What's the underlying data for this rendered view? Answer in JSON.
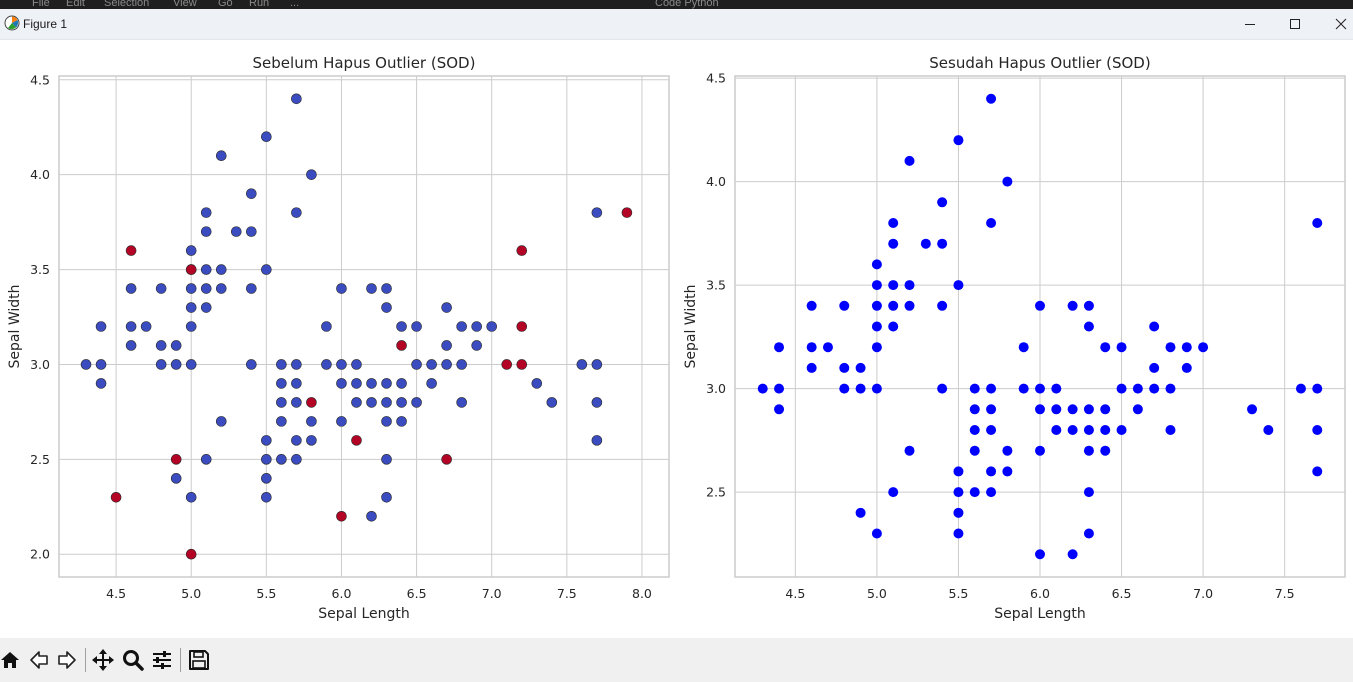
{
  "background_app": {
    "menu": [
      "File",
      "Edit",
      "Selection",
      "View",
      "Go",
      "Run",
      "..."
    ],
    "search_text": "Code Python"
  },
  "window": {
    "title": "Figure 1",
    "controls": {
      "minimize_icon": "minimize-icon",
      "maximize_icon": "maximize-icon",
      "close_icon": "close-icon"
    }
  },
  "colors": {
    "inlier": "#3b4cc0",
    "outlier": "#b40426",
    "after_points": "#0000ff",
    "grid": "#cccccc",
    "axes": "#cccccc"
  },
  "chart_data": [
    {
      "type": "scatter",
      "title": "Sebelum Hapus Outlier (SOD)",
      "xlabel": "Sepal Length",
      "ylabel": "Sepal Width",
      "xlim": [
        4.12,
        8.18
      ],
      "ylim": [
        1.88,
        4.52
      ],
      "xticks": [
        4.5,
        5.0,
        5.5,
        6.0,
        6.5,
        7.0,
        7.5,
        8.0
      ],
      "yticks": [
        2.0,
        2.5,
        3.0,
        3.5,
        4.0,
        4.5
      ],
      "tick_labels_x": [
        "4.5",
        "5.0",
        "5.5",
        "6.0",
        "6.5",
        "7.0",
        "7.5",
        "8.0"
      ],
      "tick_labels_y": [
        "2.0",
        "2.5",
        "3.0",
        "3.5",
        "4.0",
        "4.5"
      ],
      "grid": true,
      "series": [
        {
          "name": "inlier",
          "color": "#3b4cc0",
          "points": [
            [
              4.3,
              3.0
            ],
            [
              4.4,
              2.9
            ],
            [
              4.4,
              3.0
            ],
            [
              4.4,
              3.2
            ],
            [
              4.6,
              3.1
            ],
            [
              4.6,
              3.2
            ],
            [
              4.6,
              3.4
            ],
            [
              4.7,
              3.2
            ],
            [
              4.8,
              3.0
            ],
            [
              4.8,
              3.1
            ],
            [
              4.8,
              3.4
            ],
            [
              4.9,
              2.4
            ],
            [
              4.9,
              3.0
            ],
            [
              4.9,
              3.1
            ],
            [
              5.0,
              2.3
            ],
            [
              5.0,
              3.0
            ],
            [
              5.0,
              3.2
            ],
            [
              5.0,
              3.3
            ],
            [
              5.0,
              3.4
            ],
            [
              5.0,
              3.5
            ],
            [
              5.0,
              3.6
            ],
            [
              5.1,
              2.5
            ],
            [
              5.1,
              3.3
            ],
            [
              5.1,
              3.4
            ],
            [
              5.1,
              3.5
            ],
            [
              5.1,
              3.7
            ],
            [
              5.1,
              3.8
            ],
            [
              5.2,
              2.7
            ],
            [
              5.2,
              3.4
            ],
            [
              5.2,
              3.5
            ],
            [
              5.2,
              4.1
            ],
            [
              5.3,
              3.7
            ],
            [
              5.4,
              3.0
            ],
            [
              5.4,
              3.4
            ],
            [
              5.4,
              3.7
            ],
            [
              5.4,
              3.9
            ],
            [
              5.5,
              2.3
            ],
            [
              5.5,
              2.4
            ],
            [
              5.5,
              2.5
            ],
            [
              5.5,
              2.6
            ],
            [
              5.5,
              3.5
            ],
            [
              5.5,
              4.2
            ],
            [
              5.6,
              2.5
            ],
            [
              5.6,
              2.7
            ],
            [
              5.6,
              2.8
            ],
            [
              5.6,
              2.9
            ],
            [
              5.6,
              3.0
            ],
            [
              5.7,
              2.5
            ],
            [
              5.7,
              2.6
            ],
            [
              5.7,
              2.8
            ],
            [
              5.7,
              2.9
            ],
            [
              5.7,
              3.0
            ],
            [
              5.7,
              3.8
            ],
            [
              5.7,
              4.4
            ],
            [
              5.8,
              2.6
            ],
            [
              5.8,
              2.7
            ],
            [
              5.8,
              4.0
            ],
            [
              5.9,
              3.0
            ],
            [
              5.9,
              3.2
            ],
            [
              6.0,
              2.7
            ],
            [
              6.0,
              2.9
            ],
            [
              6.0,
              3.0
            ],
            [
              6.0,
              3.4
            ],
            [
              6.1,
              2.8
            ],
            [
              6.1,
              2.9
            ],
            [
              6.1,
              3.0
            ],
            [
              6.2,
              2.2
            ],
            [
              6.2,
              2.8
            ],
            [
              6.2,
              2.9
            ],
            [
              6.2,
              3.4
            ],
            [
              6.3,
              2.3
            ],
            [
              6.3,
              2.5
            ],
            [
              6.3,
              2.7
            ],
            [
              6.3,
              2.8
            ],
            [
              6.3,
              2.9
            ],
            [
              6.3,
              3.3
            ],
            [
              6.3,
              3.4
            ],
            [
              6.4,
              2.7
            ],
            [
              6.4,
              2.8
            ],
            [
              6.4,
              2.9
            ],
            [
              6.4,
              3.2
            ],
            [
              6.5,
              2.8
            ],
            [
              6.5,
              3.0
            ],
            [
              6.5,
              3.2
            ],
            [
              6.6,
              2.9
            ],
            [
              6.6,
              3.0
            ],
            [
              6.7,
              3.0
            ],
            [
              6.7,
              3.1
            ],
            [
              6.7,
              3.3
            ],
            [
              6.8,
              2.8
            ],
            [
              6.8,
              3.0
            ],
            [
              6.8,
              3.2
            ],
            [
              6.9,
              3.1
            ],
            [
              6.9,
              3.2
            ],
            [
              7.0,
              3.2
            ],
            [
              7.3,
              2.9
            ],
            [
              7.4,
              2.8
            ],
            [
              7.6,
              3.0
            ],
            [
              7.7,
              2.6
            ],
            [
              7.7,
              2.8
            ],
            [
              7.7,
              3.0
            ],
            [
              7.7,
              3.8
            ]
          ]
        },
        {
          "name": "outlier",
          "color": "#b40426",
          "points": [
            [
              4.5,
              2.3
            ],
            [
              4.6,
              3.6
            ],
            [
              4.9,
              2.5
            ],
            [
              5.0,
              2.0
            ],
            [
              5.0,
              3.5
            ],
            [
              5.8,
              2.8
            ],
            [
              6.0,
              2.2
            ],
            [
              6.1,
              2.6
            ],
            [
              6.4,
              3.1
            ],
            [
              6.7,
              2.5
            ],
            [
              7.1,
              3.0
            ],
            [
              7.2,
              3.0
            ],
            [
              7.2,
              3.2
            ],
            [
              7.2,
              3.6
            ],
            [
              7.9,
              3.8
            ]
          ]
        }
      ]
    },
    {
      "type": "scatter",
      "title": "Sesudah Hapus Outlier (SOD)",
      "xlabel": "Sepal Length",
      "ylabel": "Sepal Width",
      "xlim": [
        4.13,
        7.87
      ],
      "ylim": [
        2.09,
        4.51
      ],
      "xticks": [
        4.5,
        5.0,
        5.5,
        6.0,
        6.5,
        7.0,
        7.5
      ],
      "yticks": [
        2.5,
        3.0,
        3.5,
        4.0,
        4.5
      ],
      "tick_labels_x": [
        "4.5",
        "5.0",
        "5.5",
        "6.0",
        "6.5",
        "7.0",
        "7.5"
      ],
      "tick_labels_y": [
        "2.5",
        "3.0",
        "3.5",
        "4.0",
        "4.5"
      ],
      "grid": true,
      "series": [
        {
          "name": "inlier",
          "color": "#0000ff",
          "points": [
            [
              4.3,
              3.0
            ],
            [
              4.4,
              2.9
            ],
            [
              4.4,
              3.0
            ],
            [
              4.4,
              3.2
            ],
            [
              4.6,
              3.1
            ],
            [
              4.6,
              3.2
            ],
            [
              4.6,
              3.4
            ],
            [
              4.7,
              3.2
            ],
            [
              4.8,
              3.0
            ],
            [
              4.8,
              3.1
            ],
            [
              4.8,
              3.4
            ],
            [
              4.9,
              2.4
            ],
            [
              4.9,
              3.0
            ],
            [
              4.9,
              3.1
            ],
            [
              5.0,
              2.3
            ],
            [
              5.0,
              3.0
            ],
            [
              5.0,
              3.2
            ],
            [
              5.0,
              3.3
            ],
            [
              5.0,
              3.4
            ],
            [
              5.0,
              3.5
            ],
            [
              5.0,
              3.6
            ],
            [
              5.1,
              2.5
            ],
            [
              5.1,
              3.3
            ],
            [
              5.1,
              3.4
            ],
            [
              5.1,
              3.5
            ],
            [
              5.1,
              3.7
            ],
            [
              5.1,
              3.8
            ],
            [
              5.2,
              2.7
            ],
            [
              5.2,
              3.4
            ],
            [
              5.2,
              3.5
            ],
            [
              5.2,
              4.1
            ],
            [
              5.3,
              3.7
            ],
            [
              5.4,
              3.0
            ],
            [
              5.4,
              3.4
            ],
            [
              5.4,
              3.7
            ],
            [
              5.4,
              3.9
            ],
            [
              5.5,
              2.3
            ],
            [
              5.5,
              2.4
            ],
            [
              5.5,
              2.5
            ],
            [
              5.5,
              2.6
            ],
            [
              5.5,
              3.5
            ],
            [
              5.5,
              4.2
            ],
            [
              5.6,
              2.5
            ],
            [
              5.6,
              2.7
            ],
            [
              5.6,
              2.8
            ],
            [
              5.6,
              2.9
            ],
            [
              5.6,
              3.0
            ],
            [
              5.7,
              2.5
            ],
            [
              5.7,
              2.6
            ],
            [
              5.7,
              2.8
            ],
            [
              5.7,
              2.9
            ],
            [
              5.7,
              3.0
            ],
            [
              5.7,
              3.8
            ],
            [
              5.7,
              4.4
            ],
            [
              5.8,
              2.6
            ],
            [
              5.8,
              2.7
            ],
            [
              5.8,
              4.0
            ],
            [
              5.9,
              3.0
            ],
            [
              5.9,
              3.2
            ],
            [
              6.0,
              2.2
            ],
            [
              6.0,
              2.7
            ],
            [
              6.0,
              2.9
            ],
            [
              6.0,
              3.0
            ],
            [
              6.0,
              3.4
            ],
            [
              6.1,
              2.8
            ],
            [
              6.1,
              2.9
            ],
            [
              6.1,
              3.0
            ],
            [
              6.2,
              2.2
            ],
            [
              6.2,
              2.8
            ],
            [
              6.2,
              2.9
            ],
            [
              6.2,
              3.4
            ],
            [
              6.3,
              2.3
            ],
            [
              6.3,
              2.5
            ],
            [
              6.3,
              2.7
            ],
            [
              6.3,
              2.8
            ],
            [
              6.3,
              2.9
            ],
            [
              6.3,
              3.3
            ],
            [
              6.3,
              3.4
            ],
            [
              6.4,
              2.7
            ],
            [
              6.4,
              2.8
            ],
            [
              6.4,
              2.9
            ],
            [
              6.4,
              3.2
            ],
            [
              6.5,
              2.8
            ],
            [
              6.5,
              3.0
            ],
            [
              6.5,
              3.2
            ],
            [
              6.6,
              2.9
            ],
            [
              6.6,
              3.0
            ],
            [
              6.7,
              3.0
            ],
            [
              6.7,
              3.1
            ],
            [
              6.7,
              3.3
            ],
            [
              6.8,
              2.8
            ],
            [
              6.8,
              3.0
            ],
            [
              6.8,
              3.2
            ],
            [
              6.9,
              3.1
            ],
            [
              6.9,
              3.2
            ],
            [
              7.0,
              3.2
            ],
            [
              7.3,
              2.9
            ],
            [
              7.4,
              2.8
            ],
            [
              7.6,
              3.0
            ],
            [
              7.7,
              2.6
            ],
            [
              7.7,
              2.8
            ],
            [
              7.7,
              3.0
            ],
            [
              7.7,
              3.8
            ]
          ]
        }
      ]
    }
  ],
  "toolbar": {
    "buttons": [
      {
        "name": "home-button",
        "icon": "home-icon",
        "tooltip": "Home"
      },
      {
        "name": "back-button",
        "icon": "arrow-left-icon",
        "tooltip": "Back"
      },
      {
        "name": "forward-button",
        "icon": "arrow-right-icon",
        "tooltip": "Forward"
      },
      {
        "name": "pan-button",
        "icon": "move-icon",
        "tooltip": "Pan"
      },
      {
        "name": "zoom-button",
        "icon": "magnifier-icon",
        "tooltip": "Zoom"
      },
      {
        "name": "configure-button",
        "icon": "sliders-icon",
        "tooltip": "Configure subplots"
      },
      {
        "name": "save-button",
        "icon": "floppy-disk-icon",
        "tooltip": "Save"
      }
    ]
  }
}
